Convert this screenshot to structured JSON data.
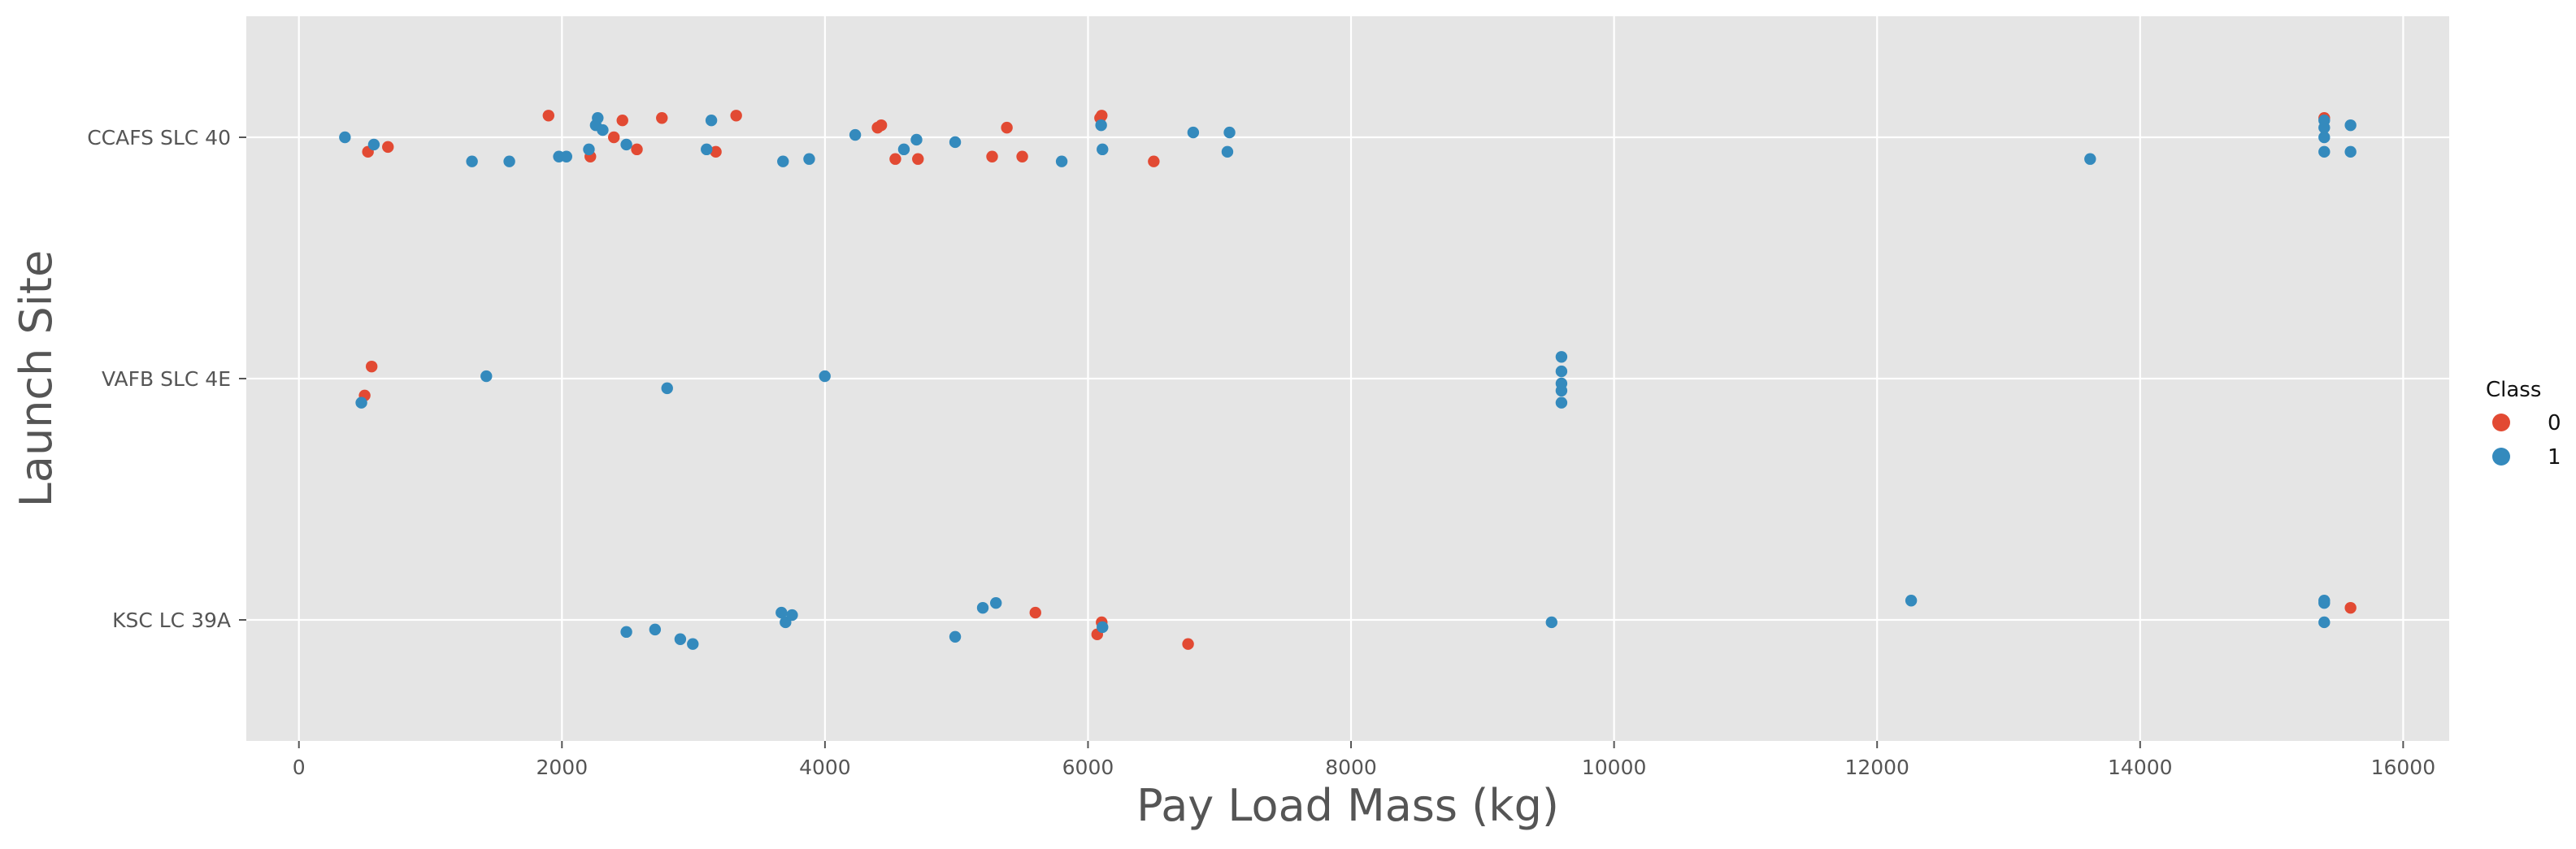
{
  "chart_data": {
    "type": "scatter",
    "xlabel": "Pay Load Mass (kg)",
    "ylabel": "Launch Site",
    "categories": [
      "CCAFS SLC 40",
      "VAFB SLC 4E",
      "KSC LC 39A"
    ],
    "xlim": [
      -400,
      16350
    ],
    "xticks": [
      0,
      2000,
      4000,
      6000,
      8000,
      10000,
      12000,
      14000,
      16000
    ],
    "grid": true,
    "legend": {
      "title": "Class",
      "placement": "right"
    },
    "colors": {
      "0": "#E24A33",
      "1": "#348ABD",
      "background": "#E5E5E5",
      "grid": "#FFFFFF"
    },
    "series": [
      {
        "name": "0",
        "points": [
          {
            "site": "CCAFS SLC 40",
            "x": 525,
            "j": 0.06
          },
          {
            "site": "CCAFS SLC 40",
            "x": 677,
            "j": 0.04
          },
          {
            "site": "CCAFS SLC 40",
            "x": 1898,
            "j": -0.09
          },
          {
            "site": "CCAFS SLC 40",
            "x": 2216,
            "j": 0.08
          },
          {
            "site": "CCAFS SLC 40",
            "x": 2395,
            "j": 0.0
          },
          {
            "site": "CCAFS SLC 40",
            "x": 2460,
            "j": -0.07
          },
          {
            "site": "CCAFS SLC 40",
            "x": 2570,
            "j": 0.05
          },
          {
            "site": "CCAFS SLC 40",
            "x": 2760,
            "j": -0.08
          },
          {
            "site": "CCAFS SLC 40",
            "x": 3170,
            "j": 0.06
          },
          {
            "site": "CCAFS SLC 40",
            "x": 3325,
            "j": -0.09
          },
          {
            "site": "CCAFS SLC 40",
            "x": 4400,
            "j": -0.04
          },
          {
            "site": "CCAFS SLC 40",
            "x": 4428,
            "j": -0.05
          },
          {
            "site": "CCAFS SLC 40",
            "x": 4535,
            "j": 0.09
          },
          {
            "site": "CCAFS SLC 40",
            "x": 4707,
            "j": 0.09
          },
          {
            "site": "CCAFS SLC 40",
            "x": 5271,
            "j": 0.08
          },
          {
            "site": "CCAFS SLC 40",
            "x": 5383,
            "j": -0.04
          },
          {
            "site": "CCAFS SLC 40",
            "x": 5500,
            "j": 0.08
          },
          {
            "site": "CCAFS SLC 40",
            "x": 6104,
            "j": -0.09
          },
          {
            "site": "CCAFS SLC 40",
            "x": 6092,
            "j": -0.08
          },
          {
            "site": "CCAFS SLC 40",
            "x": 6500,
            "j": 0.1
          },
          {
            "site": "CCAFS SLC 40",
            "x": 15400,
            "j": -0.08
          },
          {
            "site": "VAFB SLC 4E",
            "x": 500,
            "j": 0.07
          },
          {
            "site": "VAFB SLC 4E",
            "x": 553,
            "j": -0.05
          },
          {
            "site": "KSC LC 39A",
            "x": 5600,
            "j": -0.03
          },
          {
            "site": "KSC LC 39A",
            "x": 6070,
            "j": 0.06
          },
          {
            "site": "KSC LC 39A",
            "x": 6104,
            "j": 0.01
          },
          {
            "site": "KSC LC 39A",
            "x": 6761,
            "j": 0.1
          },
          {
            "site": "KSC LC 39A",
            "x": 15600,
            "j": -0.05
          }
        ]
      },
      {
        "name": "1",
        "points": [
          {
            "site": "CCAFS SLC 40",
            "x": 350,
            "j": 0.0
          },
          {
            "site": "CCAFS SLC 40",
            "x": 570,
            "j": 0.03
          },
          {
            "site": "CCAFS SLC 40",
            "x": 1316,
            "j": 0.1
          },
          {
            "site": "CCAFS SLC 40",
            "x": 1600,
            "j": 0.1
          },
          {
            "site": "CCAFS SLC 40",
            "x": 1977,
            "j": 0.08
          },
          {
            "site": "CCAFS SLC 40",
            "x": 2034,
            "j": 0.08
          },
          {
            "site": "CCAFS SLC 40",
            "x": 2205,
            "j": 0.05
          },
          {
            "site": "CCAFS SLC 40",
            "x": 2257,
            "j": -0.05
          },
          {
            "site": "CCAFS SLC 40",
            "x": 2272,
            "j": -0.08
          },
          {
            "site": "CCAFS SLC 40",
            "x": 2310,
            "j": -0.03
          },
          {
            "site": "CCAFS SLC 40",
            "x": 2490,
            "j": 0.03
          },
          {
            "site": "CCAFS SLC 40",
            "x": 3100,
            "j": 0.05
          },
          {
            "site": "CCAFS SLC 40",
            "x": 3136,
            "j": -0.07
          },
          {
            "site": "CCAFS SLC 40",
            "x": 3681,
            "j": 0.1
          },
          {
            "site": "CCAFS SLC 40",
            "x": 3880,
            "j": 0.09
          },
          {
            "site": "CCAFS SLC 40",
            "x": 4230,
            "j": -0.01
          },
          {
            "site": "CCAFS SLC 40",
            "x": 4600,
            "j": 0.05
          },
          {
            "site": "CCAFS SLC 40",
            "x": 4696,
            "j": 0.01
          },
          {
            "site": "CCAFS SLC 40",
            "x": 4990,
            "j": 0.02
          },
          {
            "site": "CCAFS SLC 40",
            "x": 5800,
            "j": 0.1
          },
          {
            "site": "CCAFS SLC 40",
            "x": 6110,
            "j": 0.05
          },
          {
            "site": "CCAFS SLC 40",
            "x": 6100,
            "j": -0.05
          },
          {
            "site": "CCAFS SLC 40",
            "x": 6800,
            "j": -0.02
          },
          {
            "site": "CCAFS SLC 40",
            "x": 7060,
            "j": 0.06
          },
          {
            "site": "CCAFS SLC 40",
            "x": 7076,
            "j": -0.02
          },
          {
            "site": "CCAFS SLC 40",
            "x": 13620,
            "j": 0.09
          },
          {
            "site": "CCAFS SLC 40",
            "x": 15400,
            "j": 0.06
          },
          {
            "site": "CCAFS SLC 40",
            "x": 15400,
            "j": 0.0
          },
          {
            "site": "CCAFS SLC 40",
            "x": 15400,
            "j": -0.04
          },
          {
            "site": "CCAFS SLC 40",
            "x": 15400,
            "j": -0.07
          },
          {
            "site": "CCAFS SLC 40",
            "x": 15600,
            "j": 0.06
          },
          {
            "site": "CCAFS SLC 40",
            "x": 15600,
            "j": -0.05
          },
          {
            "site": "VAFB SLC 4E",
            "x": 475,
            "j": 0.1
          },
          {
            "site": "VAFB SLC 4E",
            "x": 1425,
            "j": -0.01
          },
          {
            "site": "VAFB SLC 4E",
            "x": 2800,
            "j": 0.04
          },
          {
            "site": "VAFB SLC 4E",
            "x": 3999,
            "j": -0.01
          },
          {
            "site": "VAFB SLC 4E",
            "x": 9600,
            "j": 0.1
          },
          {
            "site": "VAFB SLC 4E",
            "x": 9600,
            "j": 0.05
          },
          {
            "site": "VAFB SLC 4E",
            "x": 9600,
            "j": 0.02
          },
          {
            "site": "VAFB SLC 4E",
            "x": 9600,
            "j": -0.03
          },
          {
            "site": "VAFB SLC 4E",
            "x": 9600,
            "j": -0.09
          },
          {
            "site": "KSC LC 39A",
            "x": 2490,
            "j": 0.05
          },
          {
            "site": "KSC LC 39A",
            "x": 2708,
            "j": 0.04
          },
          {
            "site": "KSC LC 39A",
            "x": 2900,
            "j": 0.08
          },
          {
            "site": "KSC LC 39A",
            "x": 2995,
            "j": 0.1
          },
          {
            "site": "KSC LC 39A",
            "x": 3669,
            "j": -0.03
          },
          {
            "site": "KSC LC 39A",
            "x": 3700,
            "j": 0.01
          },
          {
            "site": "KSC LC 39A",
            "x": 3750,
            "j": -0.02
          },
          {
            "site": "KSC LC 39A",
            "x": 4990,
            "j": 0.07
          },
          {
            "site": "KSC LC 39A",
            "x": 5200,
            "j": -0.05
          },
          {
            "site": "KSC LC 39A",
            "x": 5300,
            "j": -0.07
          },
          {
            "site": "KSC LC 39A",
            "x": 6110,
            "j": 0.03
          },
          {
            "site": "KSC LC 39A",
            "x": 9525,
            "j": 0.01
          },
          {
            "site": "KSC LC 39A",
            "x": 12259,
            "j": -0.08
          },
          {
            "site": "KSC LC 39A",
            "x": 15400,
            "j": 0.01
          },
          {
            "site": "KSC LC 39A",
            "x": 15400,
            "j": -0.07
          },
          {
            "site": "KSC LC 39A",
            "x": 15400,
            "j": -0.08
          }
        ]
      }
    ]
  }
}
